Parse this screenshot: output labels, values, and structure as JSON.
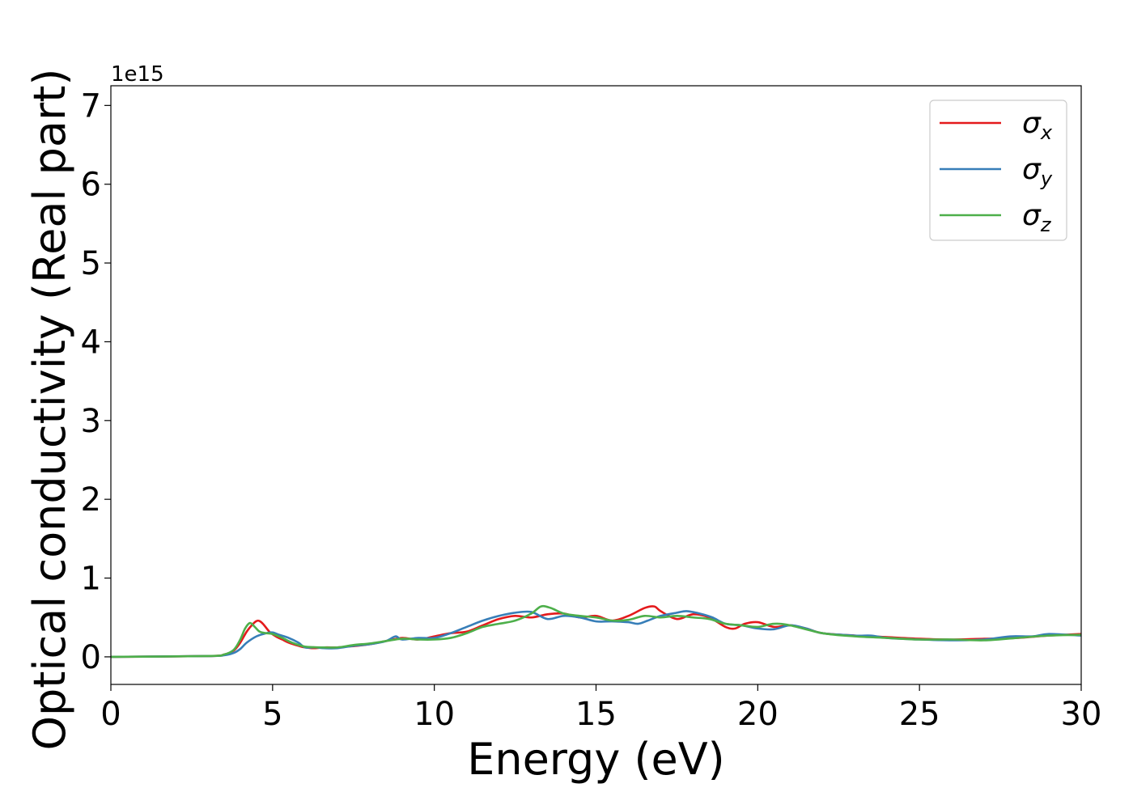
{
  "chart_data": {
    "type": "line",
    "xlabel": "Energy (eV)",
    "ylabel": "Optical conductivity (Real part)",
    "y_offset_label": "1e15",
    "y_scale": 1000000000000000.0,
    "xlim": [
      0,
      30
    ],
    "ylim": [
      -0.35,
      7.25
    ],
    "xticks": [
      0,
      5,
      10,
      15,
      20,
      25,
      30
    ],
    "yticks": [
      0,
      1,
      2,
      3,
      4,
      5,
      6,
      7
    ],
    "grid": false,
    "legend_position": "top-right",
    "series": [
      {
        "name": "σ",
        "subscript": "x",
        "color": "#e41a1c",
        "x": [
          0,
          3.0,
          3.5,
          3.8,
          4.0,
          4.2,
          4.4,
          4.55,
          4.7,
          4.9,
          5.1,
          5.3,
          5.5,
          5.8,
          6.0,
          6.3,
          6.6,
          7.0,
          7.3,
          7.6,
          8.0,
          8.5,
          9.0,
          9.5,
          10.0,
          10.5,
          11.0,
          11.5,
          12.0,
          12.5,
          13.0,
          13.5,
          14.0,
          14.5,
          15.0,
          15.5,
          16.0,
          16.5,
          16.8,
          17.0,
          17.5,
          18.0,
          18.5,
          19.0,
          19.3,
          19.6,
          20.0,
          20.5,
          21.0,
          21.5,
          22.0,
          23.0,
          24.0,
          25.0,
          26.0,
          27.0,
          28.0,
          29.0,
          30.0
        ],
        "y": [
          0.0,
          0.01,
          0.03,
          0.08,
          0.18,
          0.32,
          0.42,
          0.46,
          0.42,
          0.32,
          0.26,
          0.22,
          0.18,
          0.14,
          0.12,
          0.11,
          0.12,
          0.12,
          0.13,
          0.14,
          0.16,
          0.2,
          0.24,
          0.22,
          0.26,
          0.3,
          0.32,
          0.4,
          0.48,
          0.52,
          0.5,
          0.54,
          0.55,
          0.5,
          0.52,
          0.46,
          0.52,
          0.62,
          0.64,
          0.58,
          0.48,
          0.54,
          0.5,
          0.38,
          0.36,
          0.42,
          0.44,
          0.38,
          0.4,
          0.36,
          0.3,
          0.27,
          0.25,
          0.23,
          0.22,
          0.23,
          0.24,
          0.27,
          0.29
        ]
      },
      {
        "name": "σ",
        "subscript": "y",
        "color": "#377eb8",
        "x": [
          0,
          3.0,
          3.5,
          3.8,
          4.0,
          4.2,
          4.5,
          4.8,
          5.0,
          5.2,
          5.5,
          5.8,
          6.0,
          6.3,
          6.6,
          7.0,
          7.5,
          8.0,
          8.5,
          8.8,
          9.0,
          9.5,
          10.0,
          10.5,
          11.0,
          11.5,
          12.0,
          12.5,
          13.0,
          13.5,
          14.0,
          14.5,
          15.0,
          15.5,
          16.0,
          16.3,
          16.6,
          17.0,
          17.5,
          17.8,
          18.2,
          18.6,
          19.0,
          19.5,
          20.0,
          20.5,
          21.0,
          21.5,
          22.0,
          23.0,
          23.5,
          24.0,
          25.0,
          26.0,
          27.0,
          27.8,
          28.5,
          29.0,
          30.0
        ],
        "y": [
          0.0,
          0.01,
          0.02,
          0.05,
          0.1,
          0.18,
          0.26,
          0.3,
          0.31,
          0.28,
          0.24,
          0.18,
          0.12,
          0.12,
          0.11,
          0.11,
          0.14,
          0.16,
          0.2,
          0.26,
          0.22,
          0.24,
          0.24,
          0.3,
          0.38,
          0.46,
          0.52,
          0.56,
          0.57,
          0.48,
          0.52,
          0.5,
          0.45,
          0.45,
          0.44,
          0.42,
          0.46,
          0.52,
          0.56,
          0.58,
          0.55,
          0.5,
          0.42,
          0.4,
          0.36,
          0.35,
          0.4,
          0.36,
          0.3,
          0.27,
          0.27,
          0.24,
          0.22,
          0.21,
          0.22,
          0.26,
          0.26,
          0.29,
          0.27
        ]
      },
      {
        "name": "σ",
        "subscript": "z",
        "color": "#4daf4a",
        "x": [
          0,
          3.0,
          3.5,
          3.8,
          4.0,
          4.15,
          4.3,
          4.45,
          4.6,
          4.8,
          5.0,
          5.3,
          5.6,
          6.0,
          6.5,
          7.0,
          7.5,
          8.0,
          8.5,
          9.0,
          9.5,
          10.0,
          10.5,
          11.0,
          11.5,
          12.0,
          12.5,
          13.0,
          13.3,
          13.6,
          14.0,
          14.5,
          15.0,
          15.5,
          16.0,
          16.5,
          17.0,
          17.5,
          18.0,
          18.5,
          19.0,
          19.5,
          20.0,
          20.5,
          21.0,
          22.0,
          23.0,
          24.0,
          25.0,
          26.0,
          27.0,
          28.0,
          29.0,
          30.0
        ],
        "y": [
          0.0,
          0.01,
          0.03,
          0.09,
          0.22,
          0.36,
          0.43,
          0.38,
          0.32,
          0.3,
          0.29,
          0.24,
          0.18,
          0.13,
          0.12,
          0.12,
          0.15,
          0.17,
          0.2,
          0.23,
          0.22,
          0.22,
          0.24,
          0.3,
          0.38,
          0.42,
          0.46,
          0.55,
          0.64,
          0.62,
          0.55,
          0.52,
          0.5,
          0.46,
          0.47,
          0.52,
          0.5,
          0.52,
          0.5,
          0.48,
          0.42,
          0.4,
          0.38,
          0.42,
          0.4,
          0.3,
          0.26,
          0.24,
          0.22,
          0.22,
          0.21,
          0.24,
          0.27,
          0.28
        ]
      }
    ]
  }
}
